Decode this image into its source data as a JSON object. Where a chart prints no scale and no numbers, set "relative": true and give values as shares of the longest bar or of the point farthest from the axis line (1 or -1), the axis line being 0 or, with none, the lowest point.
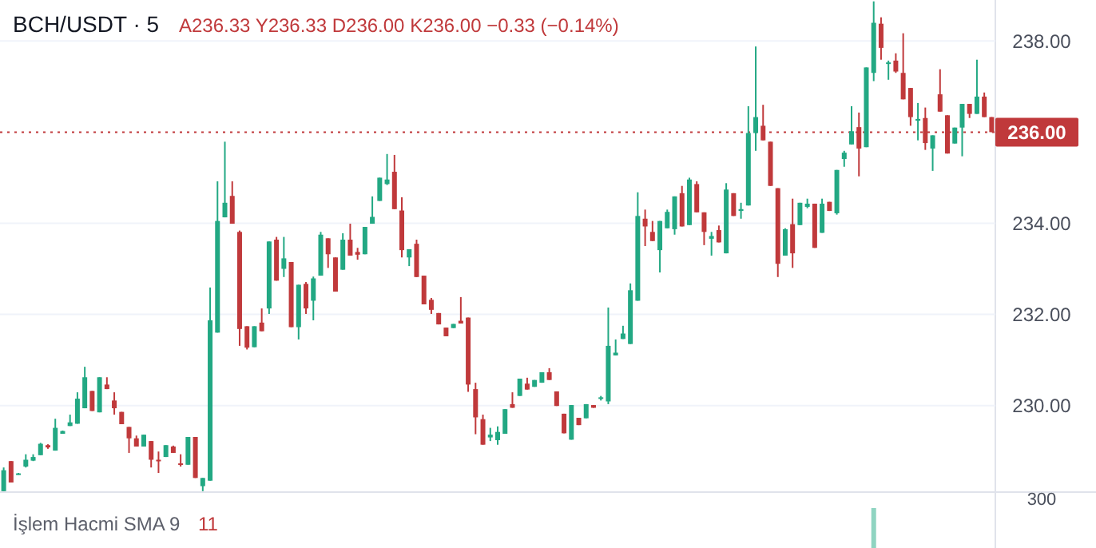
{
  "chart_data": [
    {
      "type": "candlestick",
      "title": "BCH/USDT · 5",
      "subtitle": "A236.33 Y236.33 D236.00 K236.00 −0.33 (−0.14%)",
      "categories": [
        null,
        null,
        null,
        null,
        null,
        null,
        null,
        null,
        null,
        null,
        null,
        null,
        null,
        null,
        null,
        null,
        null,
        null,
        null,
        null,
        null,
        null,
        null,
        null,
        null,
        null,
        null,
        null,
        null,
        null,
        null,
        null,
        null,
        null,
        null,
        null,
        null,
        null,
        null,
        null,
        null,
        null,
        null,
        null,
        null,
        null,
        null,
        null,
        null,
        null,
        null,
        null,
        null,
        null,
        null,
        null,
        null,
        null,
        null,
        null,
        null,
        null,
        null,
        null,
        null,
        null,
        null,
        null,
        null,
        null,
        null,
        null,
        null,
        null,
        null,
        null,
        null,
        null,
        null,
        null,
        null,
        null,
        null,
        null,
        null,
        null,
        null,
        null,
        null,
        null,
        null,
        null,
        null,
        null,
        null,
        null,
        null,
        null,
        null,
        null,
        null,
        null,
        null,
        null,
        null,
        null,
        null,
        null,
        null,
        null,
        null,
        null,
        null,
        null,
        null,
        null,
        null,
        null,
        null,
        null,
        null,
        null,
        null,
        null,
        null,
        null,
        null,
        null,
        null,
        null,
        null,
        null,
        null,
        null,
        null
      ],
      "ohlc": [
        [
          228.12,
          228.64,
          228.12,
          228.58
        ],
        [
          228.78,
          228.78,
          228.31,
          228.31
        ],
        [
          228.49,
          228.52,
          228.48,
          228.51
        ],
        [
          228.66,
          228.93,
          228.64,
          228.81
        ],
        [
          228.79,
          228.93,
          228.78,
          228.87
        ],
        [
          228.91,
          229.18,
          228.91,
          229.16
        ],
        [
          229.13,
          229.15,
          229.05,
          229.08
        ],
        [
          229.01,
          229.71,
          229.01,
          229.51
        ],
        [
          229.38,
          229.45,
          229.38,
          229.44
        ],
        [
          229.55,
          229.8,
          229.55,
          229.63
        ],
        [
          229.6,
          230.29,
          229.6,
          230.15
        ],
        [
          229.94,
          230.85,
          229.94,
          230.62
        ],
        [
          230.32,
          230.32,
          229.88,
          229.88
        ],
        [
          229.85,
          230.62,
          229.85,
          230.62
        ],
        [
          230.46,
          230.62,
          230.36,
          230.36
        ],
        [
          230.11,
          230.29,
          229.8,
          229.94
        ],
        [
          229.86,
          229.86,
          229.59,
          229.59
        ],
        [
          229.53,
          229.53,
          228.96,
          229.28
        ],
        [
          229.28,
          229.34,
          229.1,
          229.1
        ],
        [
          229.1,
          229.36,
          229.1,
          229.36
        ],
        [
          229.22,
          229.22,
          228.64,
          228.81
        ],
        [
          228.81,
          228.99,
          228.52,
          228.78
        ],
        [
          228.87,
          229.13,
          228.87,
          229.13
        ],
        [
          229.1,
          229.12,
          228.96,
          228.96
        ],
        [
          228.73,
          228.93,
          228.66,
          228.7
        ],
        [
          228.7,
          229.31,
          228.7,
          229.31
        ],
        [
          229.31,
          229.31,
          228.41,
          228.41
        ],
        [
          228.23,
          228.41,
          228.12,
          228.41
        ],
        [
          228.35,
          232.59,
          228.35,
          231.87
        ],
        [
          231.6,
          234.92,
          231.6,
          234.05
        ],
        [
          234.13,
          235.79,
          234.13,
          234.45
        ],
        [
          234.6,
          234.92,
          233.99,
          233.99
        ],
        [
          233.81,
          233.84,
          231.31,
          231.68
        ],
        [
          231.74,
          231.74,
          231.23,
          231.27
        ],
        [
          231.28,
          231.74,
          231.28,
          231.74
        ],
        [
          231.82,
          232.13,
          231.63,
          231.63
        ],
        [
          232.13,
          233.6,
          232.01,
          233.6
        ],
        [
          233.64,
          233.7,
          232.74,
          232.74
        ],
        [
          233.0,
          233.7,
          232.82,
          233.23
        ],
        [
          233.15,
          233.15,
          231.72,
          231.72
        ],
        [
          231.72,
          232.65,
          231.45,
          232.65
        ],
        [
          232.67,
          232.71,
          232.01,
          232.13
        ],
        [
          232.3,
          232.83,
          231.87,
          232.79
        ],
        [
          232.85,
          233.81,
          232.85,
          233.75
        ],
        [
          233.67,
          233.67,
          233.02,
          233.32
        ],
        [
          233.25,
          233.25,
          232.5,
          232.5
        ],
        [
          232.98,
          233.78,
          232.98,
          233.64
        ],
        [
          233.64,
          233.99,
          233.29,
          233.29
        ],
        [
          233.37,
          233.46,
          233.2,
          233.31
        ],
        [
          233.32,
          233.92,
          233.32,
          233.92
        ],
        [
          233.99,
          234.59,
          233.99,
          234.14
        ],
        [
          234.49,
          235.0,
          234.49,
          235.0
        ],
        [
          234.86,
          235.52,
          234.84,
          234.96
        ],
        [
          235.13,
          235.5,
          234.31,
          234.31
        ],
        [
          234.28,
          234.57,
          233.25,
          233.41
        ],
        [
          233.25,
          233.43,
          233.06,
          233.43
        ],
        [
          233.55,
          233.64,
          232.82,
          232.82
        ],
        [
          232.85,
          232.85,
          232.22,
          232.22
        ],
        [
          232.32,
          232.36,
          232.01,
          232.1
        ],
        [
          232.03,
          232.03,
          231.78,
          231.78
        ],
        [
          231.71,
          231.71,
          231.52,
          231.52
        ],
        [
          231.7,
          231.79,
          231.7,
          231.79
        ],
        [
          231.86,
          232.38,
          231.8,
          231.8
        ],
        [
          231.93,
          231.93,
          230.3,
          230.46
        ],
        [
          230.36,
          230.5,
          229.37,
          229.74
        ],
        [
          229.7,
          229.8,
          229.14,
          229.14
        ],
        [
          229.3,
          229.51,
          229.22,
          229.36
        ],
        [
          229.24,
          229.54,
          229.14,
          229.42
        ],
        [
          229.38,
          229.92,
          229.38,
          229.92
        ],
        [
          230.03,
          230.29,
          229.95,
          229.95
        ],
        [
          230.21,
          230.59,
          230.21,
          230.59
        ],
        [
          230.48,
          230.61,
          230.35,
          230.35
        ],
        [
          230.41,
          230.56,
          230.41,
          230.56
        ],
        [
          230.5,
          230.73,
          230.5,
          230.73
        ],
        [
          230.73,
          230.82,
          230.56,
          230.56
        ],
        [
          230.31,
          230.31,
          229.99,
          229.99
        ],
        [
          229.82,
          229.82,
          229.39,
          229.39
        ],
        [
          229.25,
          230.01,
          229.25,
          230.01
        ],
        [
          229.73,
          229.73,
          229.57,
          229.57
        ],
        [
          229.72,
          230.03,
          229.72,
          230.03
        ],
        [
          230.01,
          230.01,
          229.95,
          229.95
        ],
        [
          230.15,
          230.21,
          230.11,
          230.18
        ],
        [
          230.09,
          232.15,
          230.03,
          231.31
        ],
        [
          231.1,
          231.45,
          231.1,
          231.16
        ],
        [
          231.46,
          231.75,
          231.46,
          231.58
        ],
        [
          231.35,
          232.68,
          231.35,
          232.53
        ],
        [
          232.3,
          234.68,
          232.3,
          234.16
        ],
        [
          234.1,
          234.3,
          233.5,
          233.93
        ],
        [
          233.81,
          234.05,
          233.61,
          233.61
        ],
        [
          233.41,
          234.05,
          232.92,
          234.05
        ],
        [
          233.89,
          234.3,
          233.89,
          234.25
        ],
        [
          233.87,
          234.59,
          233.75,
          234.59
        ],
        [
          234.66,
          234.82,
          233.93,
          233.93
        ],
        [
          233.96,
          235.0,
          233.96,
          234.96
        ],
        [
          234.86,
          234.92,
          234.24,
          234.24
        ],
        [
          234.24,
          234.24,
          233.52,
          233.81
        ],
        [
          233.66,
          233.81,
          233.29,
          233.72
        ],
        [
          233.85,
          233.95,
          233.58,
          233.58
        ],
        [
          233.34,
          234.88,
          233.34,
          234.74
        ],
        [
          234.66,
          234.66,
          234.16,
          234.16
        ],
        [
          234.27,
          234.45,
          234.1,
          234.31
        ],
        [
          234.39,
          236.57,
          234.39,
          235.98
        ],
        [
          235.98,
          237.88,
          235.59,
          236.33
        ],
        [
          236.14,
          236.6,
          235.82,
          235.82
        ],
        [
          235.79,
          235.79,
          234.82,
          234.82
        ],
        [
          234.77,
          234.77,
          232.82,
          233.11
        ],
        [
          233.29,
          233.89,
          233.29,
          233.87
        ],
        [
          233.98,
          234.54,
          233.02,
          233.34
        ],
        [
          233.96,
          234.45,
          233.96,
          234.45
        ],
        [
          234.36,
          234.54,
          234.33,
          234.43
        ],
        [
          234.43,
          234.43,
          233.46,
          233.46
        ],
        [
          233.79,
          234.54,
          233.79,
          234.43
        ],
        [
          234.47,
          234.47,
          234.27,
          234.27
        ],
        [
          234.22,
          235.17,
          234.19,
          235.17
        ],
        [
          235.41,
          235.59,
          235.24,
          235.55
        ],
        [
          235.73,
          236.57,
          235.73,
          236.02
        ],
        [
          236.11,
          236.43,
          235.03,
          235.64
        ],
        [
          235.67,
          237.42,
          235.67,
          237.42
        ],
        [
          237.3,
          238.87,
          237.12,
          238.4
        ],
        [
          238.38,
          238.52,
          237.59,
          237.85
        ],
        [
          237.5,
          237.57,
          237.15,
          237.53
        ],
        [
          237.57,
          237.73,
          237.3,
          237.33
        ],
        [
          237.3,
          238.17,
          236.72,
          236.72
        ],
        [
          236.97,
          236.97,
          236.14,
          236.33
        ],
        [
          236.25,
          236.64,
          235.82,
          236.29
        ],
        [
          236.31,
          236.54,
          235.61,
          235.76
        ],
        [
          235.64,
          235.93,
          235.15,
          235.93
        ],
        [
          236.83,
          237.38,
          236.45,
          236.45
        ],
        [
          236.37,
          236.37,
          235.53,
          235.53
        ],
        [
          235.75,
          236.1,
          235.75,
          236.1
        ],
        [
          236.1,
          236.62,
          235.47,
          236.62
        ],
        [
          236.62,
          236.62,
          236.31,
          236.4
        ],
        [
          236.4,
          237.59,
          236.4,
          236.78
        ],
        [
          236.78,
          236.87,
          236.33,
          236.33
        ],
        [
          236.33,
          236.33,
          236.0,
          236.0
        ]
      ],
      "ylim": [
        228.1,
        238.9
      ],
      "yticks": [
        {
          "value": 230,
          "label": "230.00"
        },
        {
          "value": 232,
          "label": "232.00"
        },
        {
          "value": 234,
          "label": "234.00"
        },
        {
          "value": 238,
          "label": "238.00"
        }
      ],
      "grid": "y",
      "ref_lines": [
        {
          "axis": "y",
          "value": 236,
          "label": "236.00",
          "color": "#c0393b",
          "line_style": "dotted"
        }
      ]
    },
    {
      "type": "bar",
      "title": "İşlem Hacmi SMA 9",
      "annotations": [
        "11",
        "300"
      ],
      "relative": true,
      "color": "#8fd4c1",
      "categories": [
        null,
        null,
        null,
        null,
        null,
        null,
        null,
        null,
        null,
        null,
        null,
        null,
        null,
        null,
        null,
        null,
        null,
        null,
        null,
        null,
        null,
        null,
        null,
        null,
        null,
        null,
        null,
        null,
        null,
        null,
        null,
        null,
        null,
        null,
        null,
        null,
        null,
        null,
        null,
        null,
        null,
        null,
        null,
        null,
        null,
        null,
        null,
        null,
        null,
        null,
        null,
        null,
        null,
        null,
        null,
        null,
        null,
        null,
        null,
        null,
        null,
        null,
        null,
        null,
        null,
        null,
        null,
        null,
        null,
        null,
        null,
        null,
        null,
        null,
        null,
        null,
        null,
        null,
        null,
        null,
        null,
        null,
        null,
        null,
        null,
        null,
        null,
        null,
        null,
        null,
        null,
        null,
        null,
        null,
        null,
        null,
        null,
        null,
        null,
        null,
        null,
        null,
        null,
        null,
        null,
        null,
        null,
        null,
        null,
        null,
        null,
        null,
        null,
        null,
        null,
        null,
        null,
        null,
        null,
        null,
        null,
        null,
        null,
        null,
        null,
        null,
        null,
        null,
        null,
        null,
        null,
        null,
        null,
        null,
        null
      ],
      "values": [
        null,
        null,
        null,
        null,
        null,
        null,
        null,
        null,
        null,
        null,
        null,
        null,
        null,
        null,
        null,
        null,
        null,
        null,
        null,
        null,
        null,
        null,
        null,
        null,
        null,
        null,
        null,
        null,
        null,
        null,
        null,
        null,
        null,
        null,
        null,
        null,
        null,
        null,
        null,
        null,
        null,
        null,
        null,
        null,
        null,
        null,
        null,
        null,
        null,
        null,
        null,
        null,
        null,
        null,
        null,
        null,
        null,
        null,
        null,
        null,
        null,
        null,
        null,
        null,
        null,
        null,
        null,
        null,
        null,
        null,
        null,
        null,
        null,
        null,
        null,
        null,
        null,
        null,
        null,
        null,
        null,
        null,
        null,
        null,
        null,
        null,
        null,
        null,
        null,
        null,
        null,
        null,
        null,
        null,
        null,
        null,
        null,
        null,
        null,
        null,
        null,
        null,
        null,
        null,
        null,
        null,
        null,
        null,
        null,
        null,
        null,
        null,
        null,
        null,
        null,
        null,
        null,
        null,
        1,
        null,
        null,
        null,
        null,
        null,
        null,
        null,
        null,
        null,
        null,
        null,
        null,
        null,
        null,
        null,
        null
      ]
    }
  ]
}
